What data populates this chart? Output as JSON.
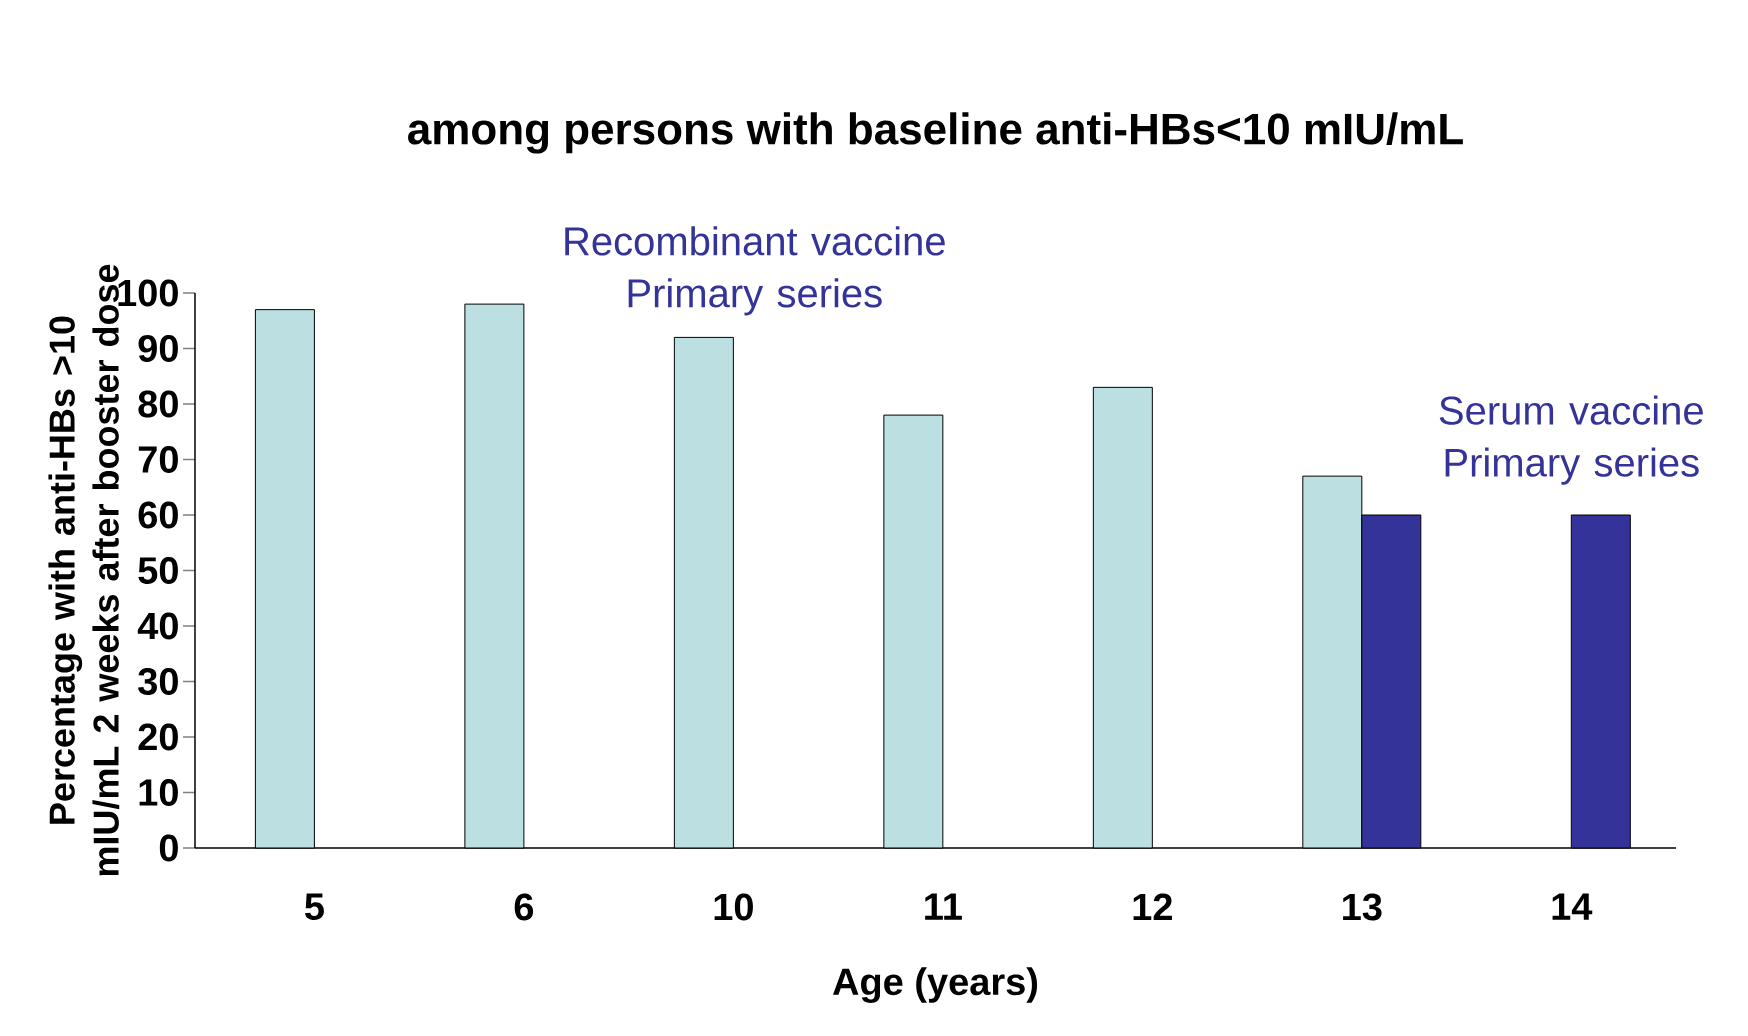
{
  "chart_data": {
    "type": "bar",
    "title": "among persons with baseline anti-HBs<10 mIU/mL",
    "xlabel": "Age (years)",
    "ylabel": "Percentage with anti-HBs >10 mIU/mL 2 weeks after booster dose",
    "categories": [
      "5",
      "6",
      "10",
      "11",
      "12",
      "13",
      "14"
    ],
    "series": [
      {
        "name": "Recombinant vaccine Primary series",
        "color": "#bce0e2",
        "values": [
          97,
          98,
          92,
          78,
          83,
          67,
          null
        ]
      },
      {
        "name": "Serum vaccine Primary series",
        "color": "#333399",
        "values": [
          null,
          null,
          null,
          null,
          null,
          60,
          60
        ]
      }
    ],
    "ylim": [
      0,
      100
    ],
    "yticks": [
      0,
      10,
      20,
      30,
      40,
      50,
      60,
      70,
      80,
      90,
      100
    ],
    "grid": false
  }
}
